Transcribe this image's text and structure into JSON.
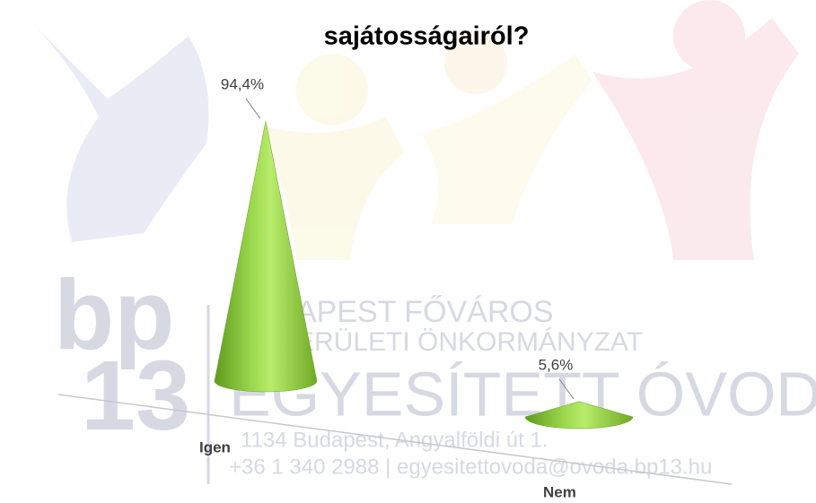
{
  "chart_data": {
    "type": "cone",
    "title": "sajátosságairól?",
    "categories": [
      "Igen",
      "Nem"
    ],
    "values": [
      94.4,
      5.6
    ],
    "value_labels": [
      "94,4%",
      "5,6%"
    ],
    "color": "#92d050"
  },
  "watermark": {
    "logo_top": "bp",
    "logo_bottom": "13",
    "lines": [
      "APEST FŐVÁROS",
      "ERÜLETI ÖNKORMÁNYZAT",
      "EGYESÍTETT ÓVODA",
      "1134 Budapest, Angyalföldi út 1.",
      "+36 1 340 2988 | egyesitettovoda@ovoda.bp13.hu"
    ]
  }
}
